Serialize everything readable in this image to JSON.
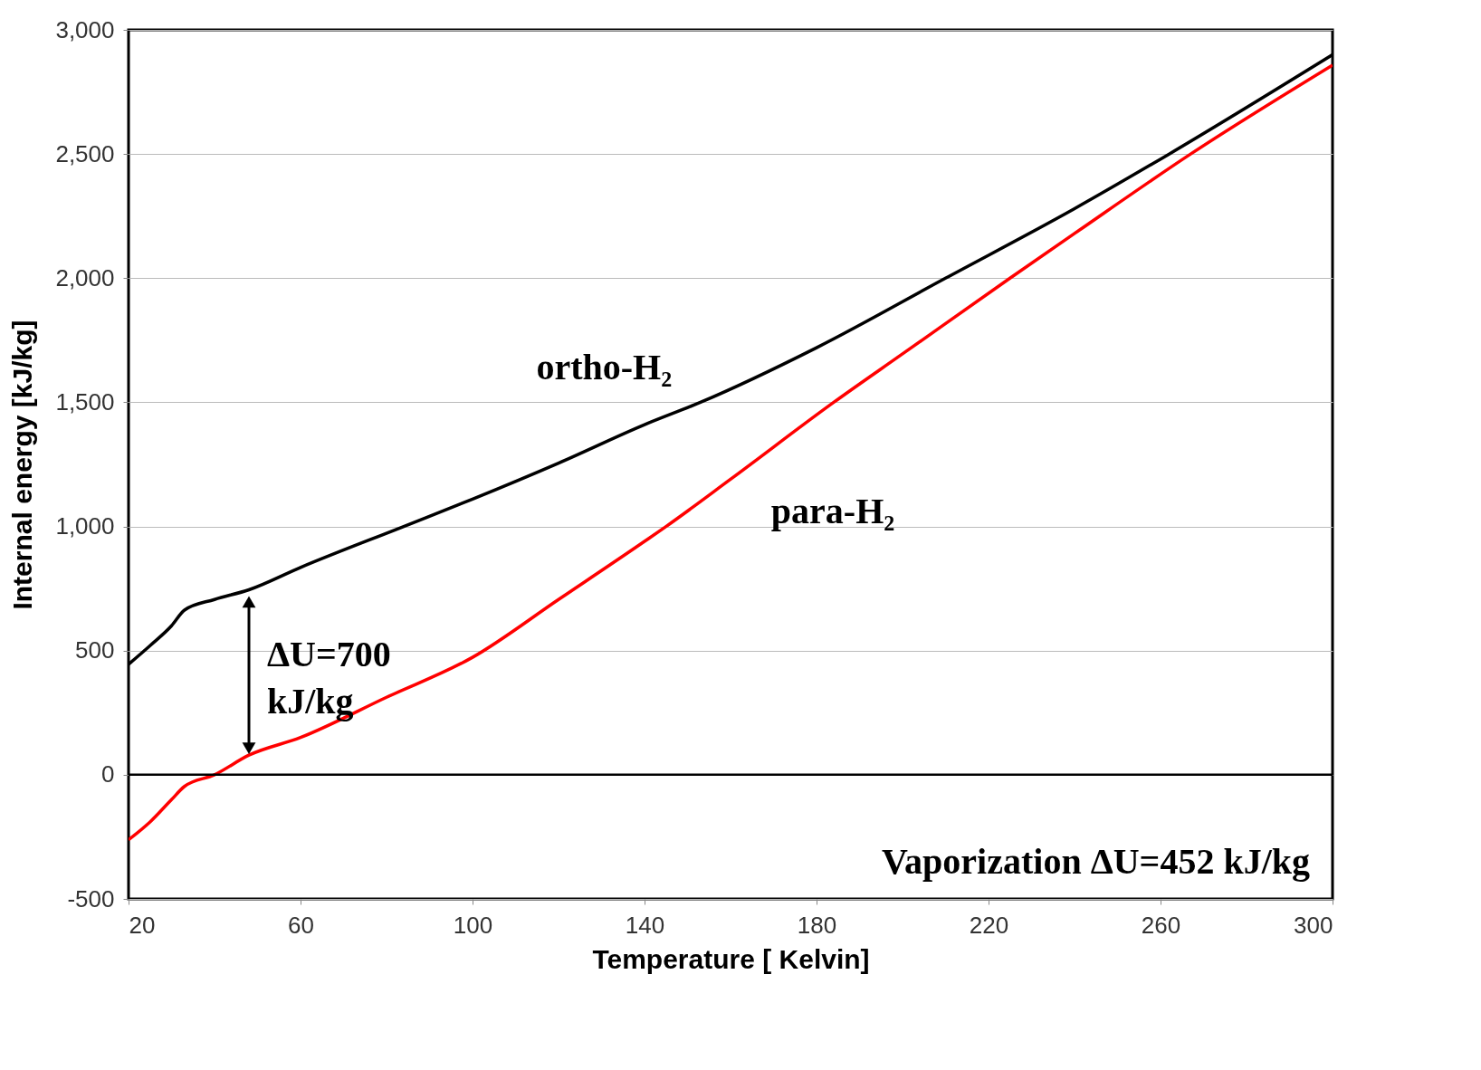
{
  "chart_data": {
    "type": "line",
    "xlabel": "Temperature [ Kelvin]",
    "ylabel": "Internal energy [kJ/kg]",
    "xlim": [
      20,
      300
    ],
    "xticks": [
      20,
      60,
      100,
      140,
      180,
      220,
      260,
      300
    ],
    "ylim": [
      -500,
      3000
    ],
    "yticks": [
      {
        "value": -500,
        "label": "-500"
      },
      0,
      500,
      {
        "value": 1000,
        "label": "1,000"
      },
      {
        "value": 1500,
        "label": "1,500"
      },
      {
        "value": 2000,
        "label": "2,000"
      },
      {
        "value": 2500,
        "label": "2,500"
      },
      {
        "value": 3000,
        "label": "3,000"
      }
    ],
    "grid": "y",
    "line_style": "solid",
    "marker": "none",
    "ref_lines": [
      {
        "axis": "y",
        "value": 0,
        "color": "#000000"
      }
    ],
    "series": [
      {
        "color": "#000000",
        "x": [
          20,
          25,
          30,
          33,
          40,
          48,
          60,
          84,
          100,
          120,
          140,
          153,
          180,
          210,
          240,
          262,
          300
        ],
        "values": [
          445,
          520,
          600,
          663,
          706,
          745,
          835,
          1000,
          1110,
          1255,
          1410,
          1500,
          1720,
          2000,
          2280,
          2500,
          2900
        ]
      },
      {
        "color": "#ff0000",
        "x": [
          20,
          25,
          30,
          33,
          40,
          48,
          60,
          80,
          100,
          120,
          140,
          145,
          160,
          184,
          200,
          225,
          240,
          267,
          300
        ],
        "values": [
          -262,
          -190,
          -100,
          -47,
          0,
          79,
          150,
          312,
          473,
          706,
          940,
          1000,
          1190,
          1500,
          1695,
          2000,
          2180,
          2500,
          2858
        ]
      }
    ],
    "annotations": [
      "ortho-H₂",
      "para-H₂",
      "ΔU=700 kJ/kg",
      "Vaporization ΔU=452 kJ/kg"
    ]
  }
}
